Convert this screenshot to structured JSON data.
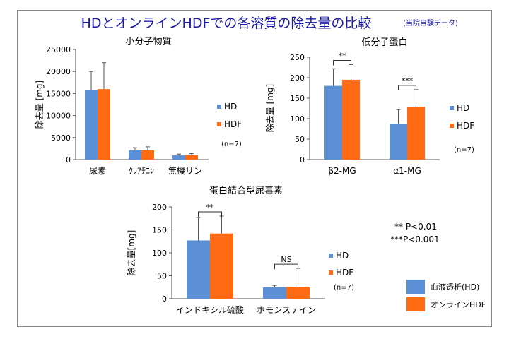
{
  "title": "HDとオンラインHDFでの各溶質の除去量の比較",
  "title_note": "(当院自験データ)",
  "colors": {
    "HD": "#5b8fd6",
    "HDF": "#ff6a13",
    "title": "#1a1aa6"
  },
  "stat_notes": [
    "** P<0.01",
    "***P<0.001"
  ],
  "bottom_legend": [
    {
      "label": "血液透析(HD)",
      "color": "#5b8fd6"
    },
    {
      "label": "オンラインHDF",
      "color": "#ff6a13"
    }
  ],
  "chart_data": [
    {
      "type": "bar",
      "title": "小分子物質",
      "ylabel": "除去量 [mg]",
      "xlabel": "",
      "categories": [
        "尿素",
        "ｸﾚｱﾁﾆﾝ",
        "無機リン"
      ],
      "series": [
        {
          "name": "HD",
          "values": [
            15700,
            2100,
            950
          ],
          "errors": [
            4300,
            600,
            300
          ]
        },
        {
          "name": "HDF",
          "values": [
            16000,
            2100,
            1000
          ],
          "errors": [
            6000,
            800,
            350
          ]
        }
      ],
      "ylim": [
        0,
        25000
      ],
      "yticks": [
        0,
        5000,
        10000,
        15000,
        20000,
        25000
      ],
      "grid": false,
      "legend": "right",
      "n_label": "(n=7)",
      "significance": []
    },
    {
      "type": "bar",
      "title": "低分子蛋白",
      "ylabel": "除去量 [mg]",
      "xlabel": "",
      "categories": [
        "β2-MG",
        "α1-MG"
      ],
      "series": [
        {
          "name": "HD",
          "values": [
            180,
            87
          ],
          "errors": [
            42,
            35
          ]
        },
        {
          "name": "HDF",
          "values": [
            195,
            129
          ],
          "errors": [
            37,
            42
          ]
        }
      ],
      "ylim": [
        0,
        250
      ],
      "yticks": [
        0,
        50,
        100,
        150,
        200,
        250
      ],
      "grid": false,
      "legend": "right",
      "n_label": "(n=7)",
      "significance": [
        {
          "category": 0,
          "label": "**"
        },
        {
          "category": 1,
          "label": "***"
        }
      ]
    },
    {
      "type": "bar",
      "title": "蛋白結合型尿毒素",
      "ylabel": "除去量[mg]",
      "xlabel": "",
      "categories": [
        "インドキシル硫酸",
        "ホモシステイン"
      ],
      "series": [
        {
          "name": "HD",
          "values": [
            127,
            25
          ],
          "errors": [
            50,
            4
          ]
        },
        {
          "name": "HDF",
          "values": [
            142,
            26
          ],
          "errors": [
            38,
            40
          ]
        }
      ],
      "ylim": [
        0,
        200
      ],
      "yticks": [
        0,
        50,
        100,
        150,
        200
      ],
      "grid": false,
      "legend": "right",
      "n_label": "(n=7)",
      "significance": [
        {
          "category": 0,
          "label": "**"
        },
        {
          "category": 1,
          "label": "NS"
        }
      ]
    }
  ]
}
